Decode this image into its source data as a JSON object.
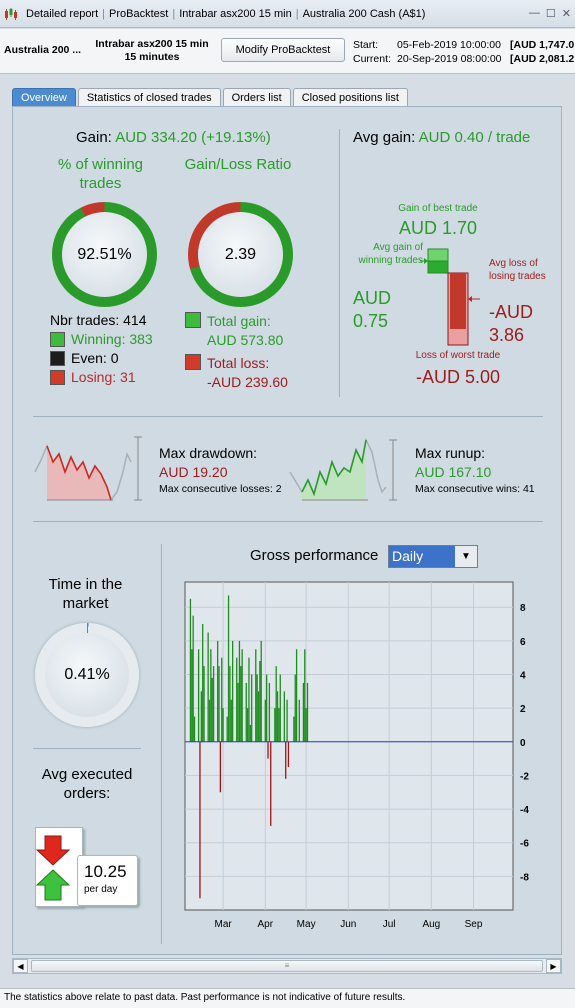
{
  "titlebar": {
    "app_name": "Detailed report",
    "segments": [
      "ProBacktest",
      "Intrabar asx200 15 min",
      "Australia 200 Cash (A$1)"
    ]
  },
  "header": {
    "instrument": "Australia 200 ...",
    "strategy_name": "Intrabar asx200 15 min",
    "timeframe": "15 minutes",
    "modify_button": "Modify ProBacktest",
    "start_label": "Start:",
    "start_date": "05-Feb-2019 10:00:00",
    "start_price": "[AUD 1,747.0",
    "current_label": "Current:",
    "current_date": "20-Sep-2019 08:00:00",
    "current_price": "[AUD 2,081.2"
  },
  "tabs": [
    "Overview",
    "Statistics of closed trades",
    "Orders list",
    "Closed positions list"
  ],
  "overview": {
    "gain_label": "Gain:",
    "gain_value": "AUD 334.20 (+19.13%)",
    "winning_title": "% of winning trades",
    "winning_pct": "92.51%",
    "winning_fraction": 0.9251,
    "ratio_title": "Gain/Loss Ratio",
    "ratio_value": "2.39",
    "ratio_gain_fraction": 0.7054,
    "nbr_trades": "Nbr trades: 414",
    "winning": "Winning: 383",
    "even": "Even: 0",
    "losing": "Losing: 31",
    "total_gain_label": "Total gain:",
    "total_gain_value": "AUD 573.80",
    "total_loss_label": "Total loss:",
    "total_loss_value": "-AUD 239.60",
    "avg_gain_label": "Avg gain:",
    "avg_gain_value": "AUD 0.40 / trade",
    "best_trade_label": "Gain of best trade",
    "best_trade_value": "AUD 1.70",
    "avg_win_label": "Avg gain of winning trades",
    "avg_win_value": "AUD 0.75",
    "avg_loss_label": "Avg loss of losing trades",
    "avg_loss_value": "-AUD 3.86",
    "worst_trade_label": "Loss of worst trade",
    "worst_trade_value": "-AUD 5.00",
    "drawdown_label": "Max drawdown:",
    "drawdown_value": "AUD 19.20",
    "consec_losses": "Max consecutive losses: 2",
    "runup_label": "Max runup:",
    "runup_value": "AUD 167.10",
    "consec_wins": "Max consecutive wins: 41",
    "time_market_title": "Time in the market",
    "time_market_value": "0.41%",
    "time_market_fraction": 0.0041,
    "avg_orders_title": "Avg executed orders:",
    "avg_orders_value": "10.25",
    "avg_orders_unit": "per day",
    "gross_title": "Gross performance",
    "gross_period": "Daily"
  },
  "colors": {
    "green": "#2a9b2a",
    "red": "#c0392b",
    "accent": "#4a8bd1",
    "bar_positive": "#1e8c1e",
    "bar_negative": "#a01414",
    "zero_line": "#2340c8"
  },
  "icons": {
    "orders": "order-arrows-icon",
    "dropdown": "chevron-down-icon"
  },
  "chart_data": {
    "type": "bar",
    "title": "Gross performance",
    "xlabel": "",
    "ylabel": "",
    "x_ticks": [
      "Mar",
      "Apr",
      "May",
      "Jun",
      "Jul",
      "Aug",
      "Sep"
    ],
    "y_ticks": [
      "8",
      "6",
      "4",
      "2",
      "0",
      "-2",
      "-4",
      "-6",
      "-8"
    ],
    "ylim": [
      -10,
      9.5
    ],
    "grid": true,
    "series": [
      {
        "values": [
          {
            "date": "2019-02-05",
            "value": 8.5
          },
          {
            "date": "2019-02-06",
            "value": 5.5
          },
          {
            "date": "2019-02-07",
            "value": 7.5
          },
          {
            "date": "2019-02-08",
            "value": 1.5
          },
          {
            "date": "2019-02-11",
            "value": 5.5
          },
          {
            "date": "2019-02-12",
            "value": -9.3
          },
          {
            "date": "2019-02-13",
            "value": 3.0
          },
          {
            "date": "2019-02-14",
            "value": 7.0
          },
          {
            "date": "2019-02-15",
            "value": 4.5
          },
          {
            "date": "2019-02-18",
            "value": 6.5
          },
          {
            "date": "2019-02-19",
            "value": 2.5
          },
          {
            "date": "2019-02-20",
            "value": 5.5
          },
          {
            "date": "2019-02-21",
            "value": 3.8
          },
          {
            "date": "2019-02-22",
            "value": 4.5
          },
          {
            "date": "2019-02-25",
            "value": 6.0
          },
          {
            "date": "2019-02-26",
            "value": 4.5
          },
          {
            "date": "2019-02-27",
            "value": -3.0
          },
          {
            "date": "2019-02-28",
            "value": 5.0
          },
          {
            "date": "2019-03-01",
            "value": 2.0
          },
          {
            "date": "2019-03-04",
            "value": 1.5
          },
          {
            "date": "2019-03-05",
            "value": 8.7
          },
          {
            "date": "2019-03-06",
            "value": 4.5
          },
          {
            "date": "2019-03-07",
            "value": 2.5
          },
          {
            "date": "2019-03-08",
            "value": 6.0
          },
          {
            "date": "2019-03-11",
            "value": 5.0
          },
          {
            "date": "2019-03-12",
            "value": 3.5
          },
          {
            "date": "2019-03-13",
            "value": 6.0
          },
          {
            "date": "2019-03-14",
            "value": 4.5
          },
          {
            "date": "2019-03-15",
            "value": 5.5
          },
          {
            "date": "2019-03-18",
            "value": 3.5
          },
          {
            "date": "2019-03-19",
            "value": 2.0
          },
          {
            "date": "2019-03-20",
            "value": 5.0
          },
          {
            "date": "2019-03-21",
            "value": 1.0
          },
          {
            "date": "2019-03-22",
            "value": 4.0
          },
          {
            "date": "2019-03-25",
            "value": 5.5
          },
          {
            "date": "2019-03-26",
            "value": 4.0
          },
          {
            "date": "2019-03-27",
            "value": 3.0
          },
          {
            "date": "2019-03-28",
            "value": 4.8
          },
          {
            "date": "2019-03-29",
            "value": 6.0
          },
          {
            "date": "2019-04-01",
            "value": 2.5
          },
          {
            "date": "2019-04-02",
            "value": 4.0
          },
          {
            "date": "2019-04-03",
            "value": -1.0
          },
          {
            "date": "2019-04-04",
            "value": 3.5
          },
          {
            "date": "2019-04-05",
            "value": -5.0
          },
          {
            "date": "2019-04-08",
            "value": 2.0
          },
          {
            "date": "2019-04-09",
            "value": 4.5
          },
          {
            "date": "2019-04-10",
            "value": 3.0
          },
          {
            "date": "2019-04-11",
            "value": 2.0
          },
          {
            "date": "2019-04-12",
            "value": 4.0
          },
          {
            "date": "2019-04-15",
            "value": 3.0
          },
          {
            "date": "2019-04-16",
            "value": -2.2
          },
          {
            "date": "2019-04-17",
            "value": 2.5
          },
          {
            "date": "2019-04-18",
            "value": -1.5
          },
          {
            "date": "2019-04-22",
            "value": 1.5
          },
          {
            "date": "2019-04-23",
            "value": 4.0
          },
          {
            "date": "2019-04-24",
            "value": 5.5
          },
          {
            "date": "2019-04-26",
            "value": 2.5
          },
          {
            "date": "2019-04-29",
            "value": 3.5
          },
          {
            "date": "2019-04-30",
            "value": 5.5
          },
          {
            "date": "2019-05-01",
            "value": 2.0
          },
          {
            "date": "2019-05-02",
            "value": 3.5
          }
        ]
      }
    ]
  }
}
